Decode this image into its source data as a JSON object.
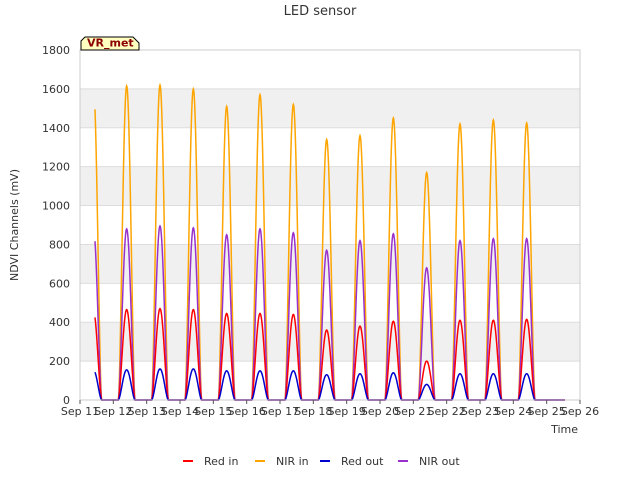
{
  "chart_data": {
    "type": "line",
    "title": "LED sensor",
    "xlabel": "Time",
    "ylabel": "NDVI Channels (mV)",
    "ylim": [
      0,
      1800
    ],
    "yticks": [
      0,
      200,
      400,
      600,
      800,
      1000,
      1200,
      1400,
      1600,
      1800
    ],
    "xlim": [
      "2023-09-11",
      "2023-09-26"
    ],
    "xticks": [
      "Sep 11",
      "Sep 12",
      "Sep 13",
      "Sep 14",
      "Sep 15",
      "Sep 16",
      "Sep 17",
      "Sep 18",
      "Sep 19",
      "Sep 20",
      "Sep 21",
      "Sep 22",
      "Sep 23",
      "Sep 24",
      "Sep 25",
      "Sep 26"
    ],
    "annotation": "VR_met",
    "grid": "horizontal bands",
    "legend_position": "bottom",
    "series": [
      {
        "name": "Red in",
        "color": "#ff0000",
        "days": [
          11.4,
          12.4,
          13.4,
          14.4,
          15.4,
          16.4,
          17.4,
          18.4,
          19.4,
          20.4,
          21.4,
          22.4,
          23.4,
          24.4,
          25.4
        ],
        "peaks": [
          460,
          465,
          470,
          465,
          445,
          445,
          440,
          360,
          380,
          405,
          200,
          410,
          410,
          415,
          null
        ]
      },
      {
        "name": "NIR in",
        "color": "#ffa500",
        "days": [
          11.4,
          12.4,
          13.4,
          14.4,
          15.4,
          16.4,
          17.4,
          18.4,
          19.4,
          20.4,
          21.4,
          22.4,
          23.4,
          24.4,
          25.4
        ],
        "peaks": [
          1620,
          1615,
          1620,
          1600,
          1510,
          1570,
          1520,
          1340,
          1360,
          1450,
          1170,
          1420,
          1440,
          1425,
          null
        ]
      },
      {
        "name": "Red out",
        "color": "#0000cd",
        "days": [
          11.4,
          12.4,
          13.4,
          14.4,
          15.4,
          16.4,
          17.4,
          18.4,
          19.4,
          20.4,
          21.4,
          22.4,
          23.4,
          24.4,
          25.4
        ],
        "peaks": [
          155,
          155,
          160,
          160,
          150,
          150,
          150,
          130,
          135,
          140,
          80,
          135,
          135,
          135,
          null
        ]
      },
      {
        "name": "NIR out",
        "color": "#9932cc",
        "days": [
          11.4,
          12.4,
          13.4,
          14.4,
          15.4,
          16.4,
          17.4,
          18.4,
          19.4,
          20.4,
          21.4,
          22.4,
          23.4,
          24.4,
          25.4
        ],
        "peaks": [
          885,
          880,
          895,
          885,
          850,
          880,
          860,
          770,
          820,
          855,
          680,
          820,
          830,
          830,
          null
        ]
      }
    ]
  }
}
